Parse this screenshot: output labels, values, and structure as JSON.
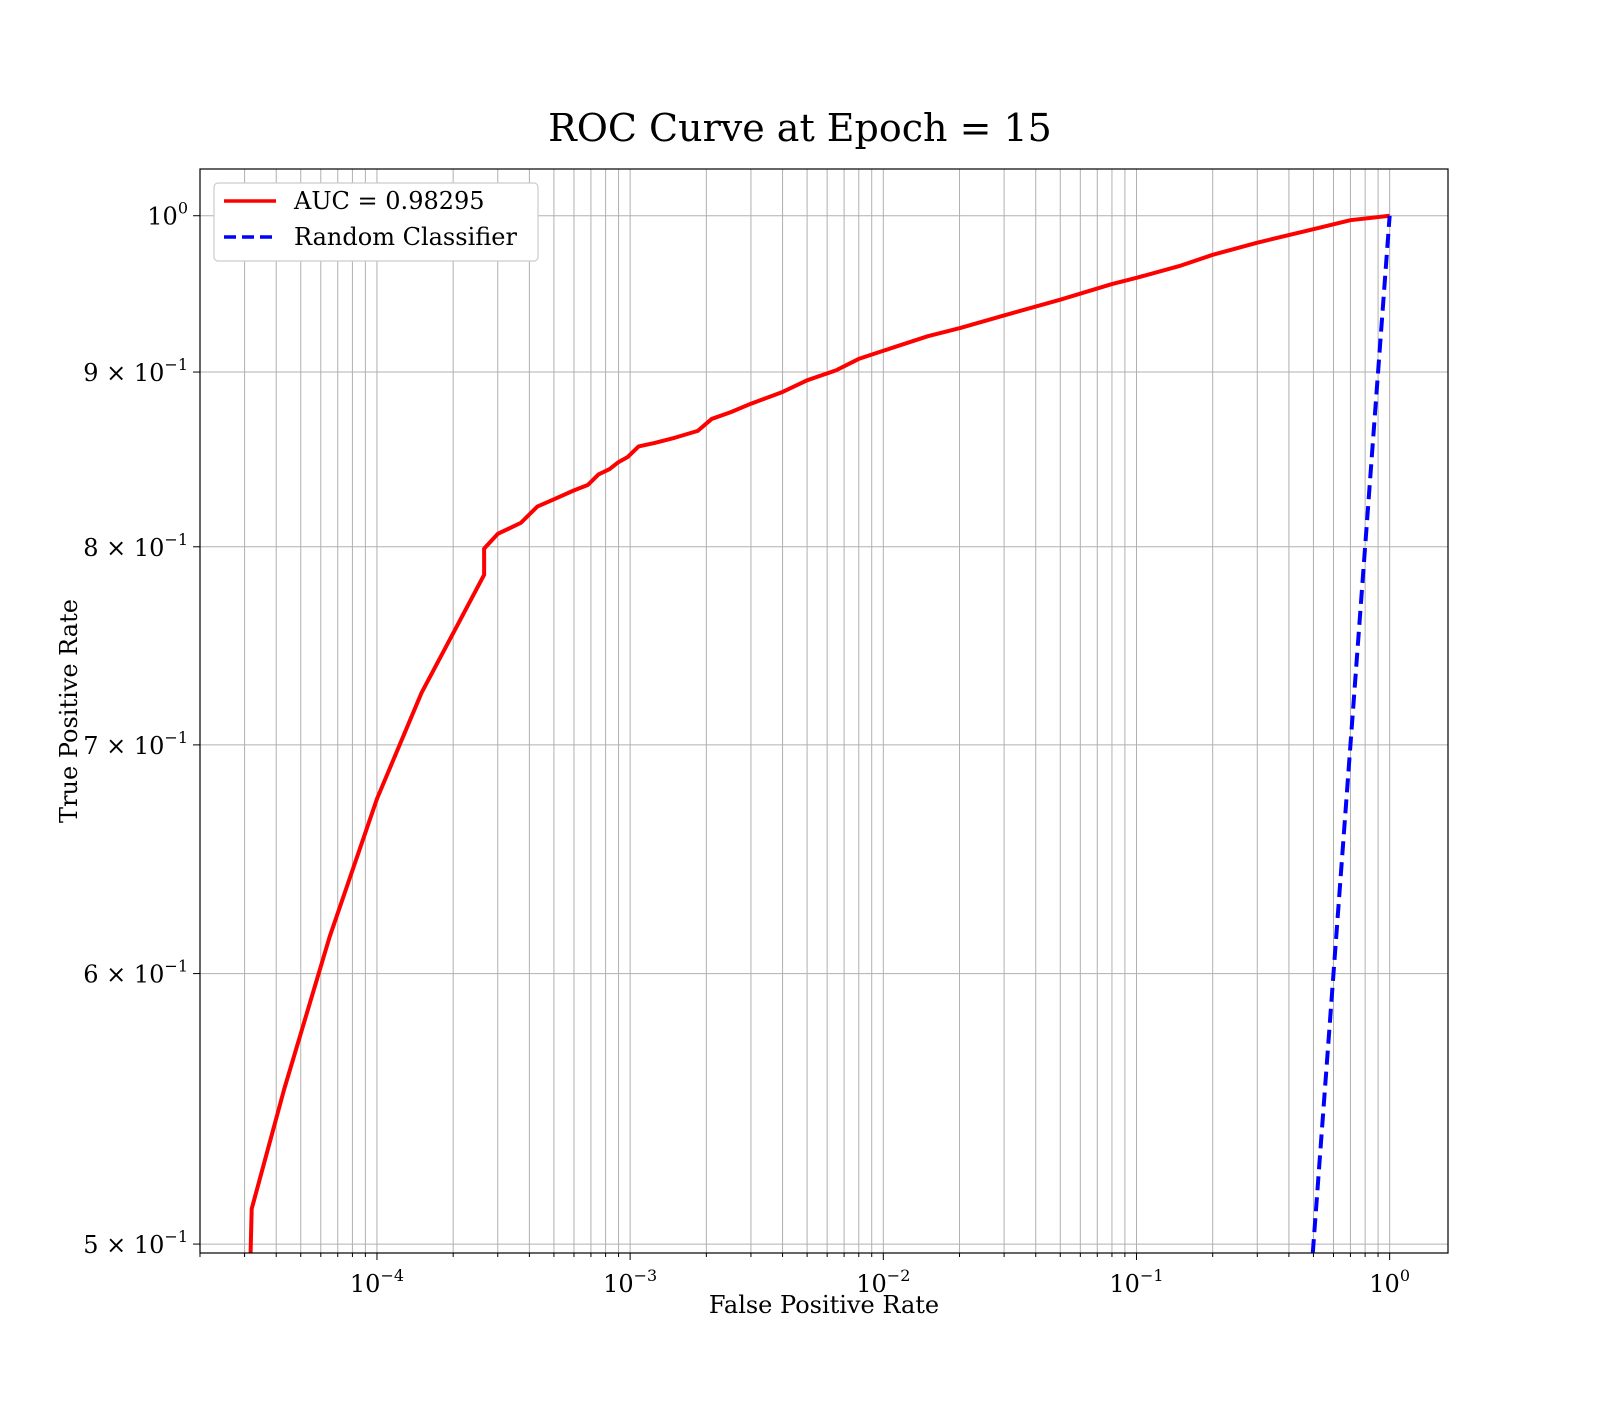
{
  "chart_data": {
    "type": "line",
    "title": "ROC Curve at Epoch = 15",
    "xlabel": "False Positive Rate",
    "ylabel": "True Positive Rate",
    "xscale": "log",
    "yscale": "log",
    "xlim": [
      2e-05,
      1.7
    ],
    "ylim": [
      0.497,
      1.032
    ],
    "grid": "both (major and minor)",
    "legend_position": "upper left",
    "x_ticks": [
      {
        "value": 0.0001,
        "base": "10",
        "exp": "−4"
      },
      {
        "value": 0.001,
        "base": "10",
        "exp": "−3"
      },
      {
        "value": 0.01,
        "base": "10",
        "exp": "−2"
      },
      {
        "value": 0.1,
        "base": "10",
        "exp": "−1"
      },
      {
        "value": 1,
        "base": "10",
        "exp": "0"
      }
    ],
    "y_ticks": [
      {
        "value": 0.5,
        "base": "5 × 10",
        "exp": "−1"
      },
      {
        "value": 0.6,
        "base": "6 × 10",
        "exp": "−1"
      },
      {
        "value": 0.7,
        "base": "7 × 10",
        "exp": "−1"
      },
      {
        "value": 0.8,
        "base": "8 × 10",
        "exp": "−1"
      },
      {
        "value": 0.9,
        "base": "9 × 10",
        "exp": "−1"
      },
      {
        "value": 1.0,
        "base": "10",
        "exp": "0"
      }
    ],
    "series": [
      {
        "name": "AUC = 0.98295",
        "color": "#ff0000",
        "style": "solid",
        "points": [
          [
            3.16e-05,
            0.493
          ],
          [
            3.2e-05,
            0.512
          ],
          [
            4.3e-05,
            0.555
          ],
          [
            6.5e-05,
            0.615
          ],
          [
            0.0001,
            0.675
          ],
          [
            0.00015,
            0.725
          ],
          [
            0.000265,
            0.785
          ],
          [
            0.000265,
            0.799
          ],
          [
            0.0003,
            0.807
          ],
          [
            0.00037,
            0.813
          ],
          [
            0.00043,
            0.822
          ],
          [
            0.0005,
            0.826
          ],
          [
            0.0006,
            0.831
          ],
          [
            0.00068,
            0.834
          ],
          [
            0.00075,
            0.84
          ],
          [
            0.00083,
            0.843
          ],
          [
            0.0009,
            0.847
          ],
          [
            0.00098,
            0.85
          ],
          [
            0.00108,
            0.856
          ],
          [
            0.00125,
            0.858
          ],
          [
            0.0015,
            0.861
          ],
          [
            0.00185,
            0.865
          ],
          [
            0.0021,
            0.872
          ],
          [
            0.0025,
            0.876
          ],
          [
            0.003,
            0.881
          ],
          [
            0.004,
            0.888
          ],
          [
            0.005,
            0.895
          ],
          [
            0.0065,
            0.901
          ],
          [
            0.008,
            0.908
          ],
          [
            0.01,
            0.913
          ],
          [
            0.015,
            0.922
          ],
          [
            0.02,
            0.927
          ],
          [
            0.03,
            0.935
          ],
          [
            0.05,
            0.945
          ],
          [
            0.08,
            0.955
          ],
          [
            0.1,
            0.959
          ],
          [
            0.15,
            0.967
          ],
          [
            0.2,
            0.974
          ],
          [
            0.3,
            0.982
          ],
          [
            0.5,
            0.991
          ],
          [
            0.7,
            0.997
          ],
          [
            1.0,
            1.0
          ]
        ]
      },
      {
        "name": "Random Classifier",
        "color": "#0000ff",
        "style": "dashed",
        "points": [
          [
            0.49,
            0.49
          ],
          [
            0.52,
            0.52
          ],
          [
            0.6,
            0.6
          ],
          [
            0.7,
            0.7
          ],
          [
            0.8,
            0.8
          ],
          [
            0.9,
            0.9
          ],
          [
            1.0,
            1.0
          ]
        ]
      }
    ]
  },
  "legend": {
    "items": [
      {
        "label": "AUC = 0.98295",
        "color": "#ff0000",
        "style": "solid"
      },
      {
        "label": "Random Classifier",
        "color": "#0000ff",
        "style": "dashed"
      }
    ]
  }
}
